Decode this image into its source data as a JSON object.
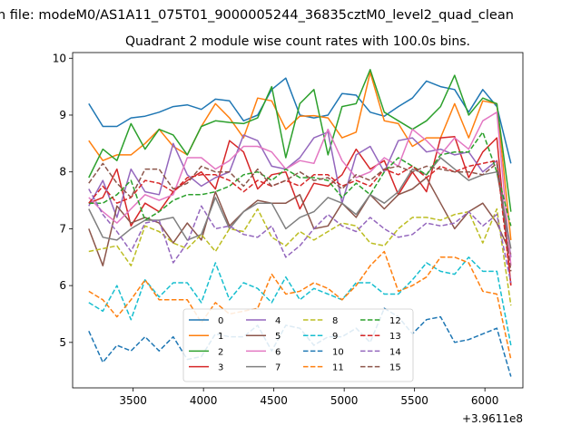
{
  "chart_data": {
    "type": "line",
    "suptitle": "n file: modeM0/AS1A11_075T01_9000005244_36835cztM0_level2_quad_clean",
    "title": "Quadrant 2 module wise count rates with 100.0s bins.",
    "xlabel": "",
    "ylabel": "",
    "offset_label": "+3.9611e8",
    "xlim": [
      3070,
      6270
    ],
    "ylim": [
      4.2,
      10.1
    ],
    "xticks": [
      3500,
      4000,
      4500,
      5000,
      5500,
      6000
    ],
    "xtick_labels": [
      "3500",
      "4000",
      "4500",
      "5000",
      "5500",
      "6000"
    ],
    "yticks": [
      5,
      6,
      7,
      8,
      9,
      10
    ],
    "ytick_labels": [
      "5",
      "6",
      "7",
      "8",
      "9",
      "10"
    ],
    "legend_position": "lower-center",
    "x": [
      3185,
      3285,
      3385,
      3485,
      3585,
      3685,
      3785,
      3885,
      3985,
      4085,
      4185,
      4285,
      4385,
      4485,
      4585,
      4685,
      4785,
      4885,
      4985,
      5085,
      5185,
      5285,
      5385,
      5485,
      5585,
      5685,
      5785,
      5885,
      5985,
      6085,
      6185
    ],
    "series": [
      {
        "name": "0",
        "color": "#1f77b4",
        "dash": "solid",
        "values": [
          9.2,
          8.8,
          8.8,
          8.95,
          8.98,
          9.05,
          9.15,
          9.18,
          9.1,
          9.28,
          9.25,
          8.9,
          9.0,
          9.45,
          9.65,
          9.0,
          8.95,
          9.0,
          9.38,
          9.35,
          9.05,
          8.98,
          9.15,
          9.3,
          9.6,
          9.5,
          9.45,
          9.05,
          9.45,
          9.15,
          8.15
        ]
      },
      {
        "name": "1",
        "color": "#ff7f0e",
        "dash": "solid",
        "values": [
          8.55,
          8.2,
          8.3,
          8.3,
          8.5,
          8.75,
          8.45,
          8.3,
          8.8,
          9.2,
          8.95,
          8.6,
          9.3,
          9.25,
          8.75,
          8.98,
          8.99,
          8.95,
          8.6,
          8.7,
          9.75,
          8.9,
          8.85,
          8.45,
          8.6,
          8.6,
          9.2,
          8.6,
          9.25,
          9.2,
          6.8
        ]
      },
      {
        "name": "2",
        "color": "#2ca02c",
        "dash": "solid",
        "values": [
          7.9,
          8.4,
          8.2,
          8.85,
          8.4,
          8.75,
          8.65,
          8.3,
          8.8,
          8.9,
          8.87,
          8.85,
          8.95,
          9.5,
          8.25,
          9.2,
          9.45,
          8.3,
          9.15,
          9.2,
          9.8,
          9.05,
          8.9,
          8.75,
          8.9,
          9.15,
          9.7,
          9.0,
          9.3,
          9.2,
          7.3
        ]
      },
      {
        "name": "3",
        "color": "#d62728",
        "dash": "solid",
        "values": [
          7.45,
          7.55,
          8.05,
          7.05,
          7.45,
          7.3,
          7.65,
          7.85,
          8.0,
          7.7,
          8.55,
          8.35,
          7.7,
          7.95,
          8.0,
          7.35,
          7.8,
          7.75,
          7.95,
          8.4,
          8.05,
          8.2,
          7.6,
          8.0,
          7.65,
          8.6,
          8.62,
          7.9,
          8.35,
          8.6,
          6.0
        ]
      },
      {
        "name": "4",
        "color": "#9467bd",
        "dash": "solid",
        "values": [
          7.4,
          7.85,
          7.2,
          8.05,
          7.65,
          7.6,
          8.5,
          7.95,
          7.75,
          7.9,
          8.0,
          8.65,
          8.55,
          8.1,
          8.05,
          8.25,
          8.6,
          8.7,
          7.45,
          8.3,
          8.45,
          8.0,
          8.55,
          8.6,
          8.35,
          8.4,
          8.3,
          8.35,
          8.0,
          8.2,
          6.5
        ]
      },
      {
        "name": "5",
        "color": "#8c564b",
        "dash": "solid",
        "values": [
          7.0,
          6.35,
          7.4,
          7.1,
          7.2,
          7.1,
          6.75,
          7.1,
          6.8,
          7.65,
          7.05,
          7.3,
          7.5,
          7.45,
          7.45,
          7.6,
          7.0,
          7.05,
          7.45,
          7.2,
          7.6,
          7.35,
          7.6,
          7.7,
          7.9,
          7.45,
          7.0,
          7.3,
          7.45,
          7.1,
          6.55
        ]
      },
      {
        "name": "6",
        "color": "#e377c2",
        "dash": "solid",
        "values": [
          7.55,
          7.3,
          7.1,
          7.35,
          7.6,
          7.5,
          7.6,
          8.25,
          8.25,
          8.05,
          8.2,
          8.45,
          8.45,
          8.35,
          8.05,
          8.2,
          8.15,
          8.75,
          8.2,
          7.9,
          8.0,
          8.25,
          8.1,
          8.75,
          8.55,
          8.3,
          8.6,
          8.4,
          8.9,
          9.05,
          6.35
        ]
      },
      {
        "name": "7",
        "color": "#7f7f7f",
        "dash": "solid",
        "values": [
          7.35,
          6.85,
          6.8,
          7.0,
          7.15,
          7.15,
          7.2,
          6.8,
          6.9,
          7.55,
          7.0,
          7.3,
          7.45,
          7.45,
          7.0,
          7.2,
          7.3,
          7.55,
          7.45,
          7.25,
          7.6,
          7.45,
          7.65,
          8.05,
          7.95,
          8.25,
          8.05,
          7.85,
          7.95,
          8.0,
          6.65
        ]
      },
      {
        "name": "8",
        "color": "#bcbd22",
        "dash": "dashed",
        "values": [
          6.6,
          6.65,
          6.7,
          6.35,
          7.05,
          6.95,
          6.75,
          6.65,
          6.9,
          6.6,
          7.0,
          6.95,
          7.35,
          6.85,
          6.7,
          6.95,
          6.8,
          6.95,
          7.1,
          7.05,
          6.75,
          6.7,
          7.0,
          7.2,
          7.2,
          7.15,
          7.25,
          7.3,
          6.75,
          7.35,
          5.65
        ]
      },
      {
        "name": "9",
        "color": "#17becf",
        "dash": "dashed",
        "values": [
          5.7,
          5.55,
          6.0,
          5.4,
          6.1,
          5.8,
          6.05,
          6.05,
          5.7,
          6.4,
          5.75,
          6.05,
          5.95,
          5.7,
          6.15,
          5.75,
          5.95,
          5.85,
          5.75,
          6.05,
          6.05,
          5.85,
          5.85,
          6.1,
          6.4,
          6.25,
          6.2,
          6.5,
          6.25,
          6.25,
          4.95
        ]
      },
      {
        "name": "10",
        "color": "#1f77b4",
        "dash": "dashed",
        "values": [
          5.2,
          4.65,
          4.95,
          4.85,
          5.1,
          4.85,
          5.1,
          4.7,
          4.75,
          5.15,
          5.1,
          5.1,
          5.3,
          4.85,
          5.3,
          5.25,
          4.95,
          5.1,
          5.1,
          5.25,
          5.0,
          5.6,
          5.45,
          5.15,
          5.4,
          5.45,
          5.0,
          5.05,
          5.15,
          5.25,
          4.4
        ]
      },
      {
        "name": "11",
        "color": "#ff7f0e",
        "dash": "dashed",
        "values": [
          5.9,
          5.75,
          5.45,
          5.75,
          6.1,
          5.75,
          5.75,
          5.75,
          5.35,
          5.7,
          5.5,
          5.55,
          5.6,
          6.2,
          5.85,
          5.9,
          6.05,
          5.95,
          5.75,
          6.0,
          6.35,
          6.6,
          5.9,
          6.0,
          6.15,
          6.5,
          6.5,
          6.4,
          5.9,
          5.85,
          4.7
        ]
      },
      {
        "name": "12",
        "color": "#2ca02c",
        "dash": "dashed",
        "values": [
          7.45,
          7.45,
          7.6,
          7.85,
          7.15,
          7.3,
          7.5,
          7.6,
          7.6,
          7.65,
          7.75,
          7.95,
          8.0,
          7.85,
          8.05,
          7.9,
          7.9,
          7.85,
          7.55,
          7.8,
          7.6,
          8.0,
          8.25,
          8.1,
          7.95,
          8.3,
          8.35,
          8.35,
          8.7,
          8.0,
          7.05
        ]
      },
      {
        "name": "13",
        "color": "#d62728",
        "dash": "dashed",
        "values": [
          7.45,
          7.75,
          7.45,
          7.55,
          7.85,
          7.8,
          7.65,
          7.9,
          7.95,
          7.95,
          7.85,
          7.65,
          7.85,
          7.75,
          7.85,
          7.75,
          7.95,
          7.95,
          7.75,
          7.85,
          7.75,
          8.05,
          7.95,
          8.1,
          7.9,
          8.1,
          8.0,
          8.1,
          8.15,
          8.2,
          6.0
        ]
      },
      {
        "name": "14",
        "color": "#9467bd",
        "dash": "dashed",
        "values": [
          7.7,
          7.25,
          6.95,
          6.6,
          7.1,
          7.15,
          6.4,
          6.75,
          7.4,
          7.0,
          7.05,
          6.9,
          6.85,
          7.05,
          6.5,
          6.7,
          7.0,
          7.25,
          7.05,
          6.95,
          7.2,
          7.0,
          6.85,
          6.9,
          7.1,
          7.05,
          7.1,
          7.3,
          7.05,
          7.25,
          6.05
        ]
      },
      {
        "name": "15",
        "color": "#8c564b",
        "dash": "dashed",
        "values": [
          7.8,
          8.15,
          7.8,
          7.55,
          8.05,
          8.05,
          7.7,
          7.8,
          8.1,
          8.0,
          8.0,
          7.75,
          8.05,
          7.75,
          7.85,
          8.0,
          7.85,
          7.9,
          7.7,
          7.95,
          7.85,
          8.05,
          8.1,
          8.0,
          8.1,
          8.05,
          8.0,
          8.0,
          7.95,
          8.15,
          6.25
        ]
      }
    ]
  }
}
